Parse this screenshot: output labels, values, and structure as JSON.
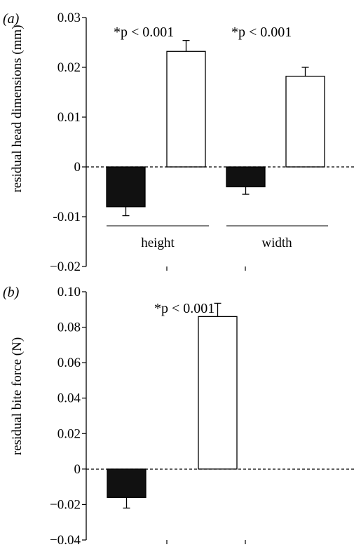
{
  "chart_data": [
    {
      "type": "bar",
      "panel_label": "(a)",
      "ylabel": "residual head dimensions (mm)",
      "ylim": [
        -0.02,
        0.03
      ],
      "yticks": [
        -0.02,
        -0.01,
        0,
        0.01,
        0.02,
        0.03
      ],
      "ytick_labels": [
        "−0.02",
        "-0.01",
        "0",
        "0.01",
        "0.02",
        "0.03"
      ],
      "groups": [
        {
          "label": "height",
          "annotation": "*p < 0.001"
        },
        {
          "label": "width",
          "annotation": "*p < 0.001"
        }
      ],
      "series": [
        {
          "fill": "#111111",
          "values": [
            -0.008,
            -0.004
          ],
          "errors": [
            0.0018,
            0.0015
          ]
        },
        {
          "fill": "#ffffff",
          "values": [
            0.0232,
            0.0182
          ],
          "errors": [
            0.0022,
            0.0018
          ]
        }
      ],
      "zero_line": "dashed"
    },
    {
      "type": "bar",
      "panel_label": "(b)",
      "ylabel": "residual bite force (N)",
      "ylim": [
        -0.04,
        0.1
      ],
      "yticks": [
        -0.04,
        -0.02,
        0,
        0.02,
        0.04,
        0.06,
        0.08,
        0.1
      ],
      "ytick_labels": [
        "−0.04",
        "−0.02",
        "0",
        "0.02",
        "0.04",
        "0.06",
        "0.08",
        "0.10"
      ],
      "groups": [
        {
          "label": "",
          "annotation": "*p < 0.001"
        }
      ],
      "series": [
        {
          "fill": "#111111",
          "values": [
            -0.016
          ],
          "errors": [
            0.006
          ]
        },
        {
          "fill": "#ffffff",
          "values": [
            0.086
          ],
          "errors": [
            0.0075
          ]
        }
      ],
      "zero_line": "dashed"
    }
  ]
}
